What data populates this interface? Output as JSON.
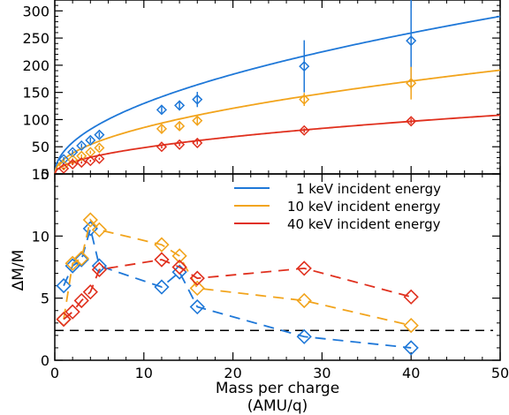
{
  "colors": {
    "1keV": "#1f78d8",
    "10keV": "#f2a41c",
    "40keV": "#e0301e",
    "axes": "#000000",
    "reference_line": "#000000"
  },
  "chart_data": [
    {
      "type": "scatter",
      "panel": "top",
      "title": "",
      "xlabel": "",
      "ylabel": "",
      "xlim": [
        0,
        50
      ],
      "ylim": [
        0,
        320
      ],
      "yticks": [
        0,
        50,
        100,
        150,
        200,
        250,
        300
      ],
      "xticks": [
        0,
        10,
        20,
        30,
        40,
        50
      ],
      "show_x_tick_labels": false,
      "grid": false,
      "fit_curves": [
        {
          "series": "1keV",
          "model": "a*sqrt(x)",
          "a": 41
        },
        {
          "series": "10keV",
          "model": "a*sqrt(x)",
          "a": 27
        },
        {
          "series": "40keV",
          "model": "a*sqrt(x)",
          "a": 15.3
        }
      ],
      "series": [
        {
          "key": "1keV",
          "x": [
            1,
            2,
            3,
            4,
            5,
            12,
            14,
            16,
            28,
            40
          ],
          "y": [
            27,
            40,
            52,
            62,
            72,
            118,
            126,
            137,
            198,
            245
          ],
          "yerr": [
            4,
            4,
            4,
            5,
            5,
            8,
            9,
            14,
            48,
            90
          ]
        },
        {
          "key": "10keV",
          "x": [
            1,
            2,
            3,
            4,
            5,
            12,
            14,
            16,
            28,
            40
          ],
          "y": [
            16,
            26,
            33,
            40,
            48,
            83,
            88,
            98,
            137,
            167
          ],
          "yerr": [
            3,
            3,
            3,
            3,
            4,
            6,
            6,
            7,
            12,
            30
          ]
        },
        {
          "key": "40keV",
          "x": [
            1,
            2,
            3,
            4,
            5,
            12,
            14,
            16,
            28,
            40
          ],
          "y": [
            10,
            18,
            21,
            24,
            28,
            50,
            54,
            57,
            80,
            97
          ],
          "yerr": [
            2,
            2,
            2,
            2,
            2,
            3,
            3,
            3,
            4,
            5
          ]
        }
      ]
    },
    {
      "type": "line",
      "panel": "bottom",
      "title": "",
      "xlabel_line1": "Mass per charge",
      "xlabel_line2": "(AMU/q)",
      "ylabel": "ΔM/M",
      "xlim": [
        0,
        50
      ],
      "ylim": [
        0,
        15
      ],
      "yticks": [
        0,
        5,
        10,
        15
      ],
      "xticks": [
        0,
        10,
        20,
        30,
        40,
        50
      ],
      "grid": false,
      "legend_position": "top-right",
      "reference_line": {
        "y": 2.4,
        "style": "dashed"
      },
      "series": [
        {
          "key": "1keV",
          "name": "1 keV incident energy",
          "x": [
            1,
            2,
            3,
            4,
            5,
            12,
            14,
            16,
            28,
            40
          ],
          "y": [
            6.0,
            7.6,
            8.1,
            10.6,
            7.6,
            5.9,
            7.1,
            4.3,
            1.9,
            1.0
          ]
        },
        {
          "key": "10keV",
          "name": "10 keV incident energy",
          "x": [
            1,
            2,
            3,
            4,
            5,
            12,
            14,
            16,
            28,
            40
          ],
          "y": [
            3.3,
            7.8,
            8.2,
            11.3,
            10.5,
            9.3,
            8.4,
            5.8,
            4.8,
            2.8
          ]
        },
        {
          "key": "40keV",
          "name": "40 keV incident energy",
          "x": [
            1,
            2,
            3,
            4,
            5,
            12,
            14,
            16,
            28,
            40
          ],
          "y": [
            3.3,
            3.9,
            4.8,
            5.5,
            7.3,
            8.1,
            7.5,
            6.6,
            7.4,
            5.1
          ]
        }
      ]
    }
  ]
}
